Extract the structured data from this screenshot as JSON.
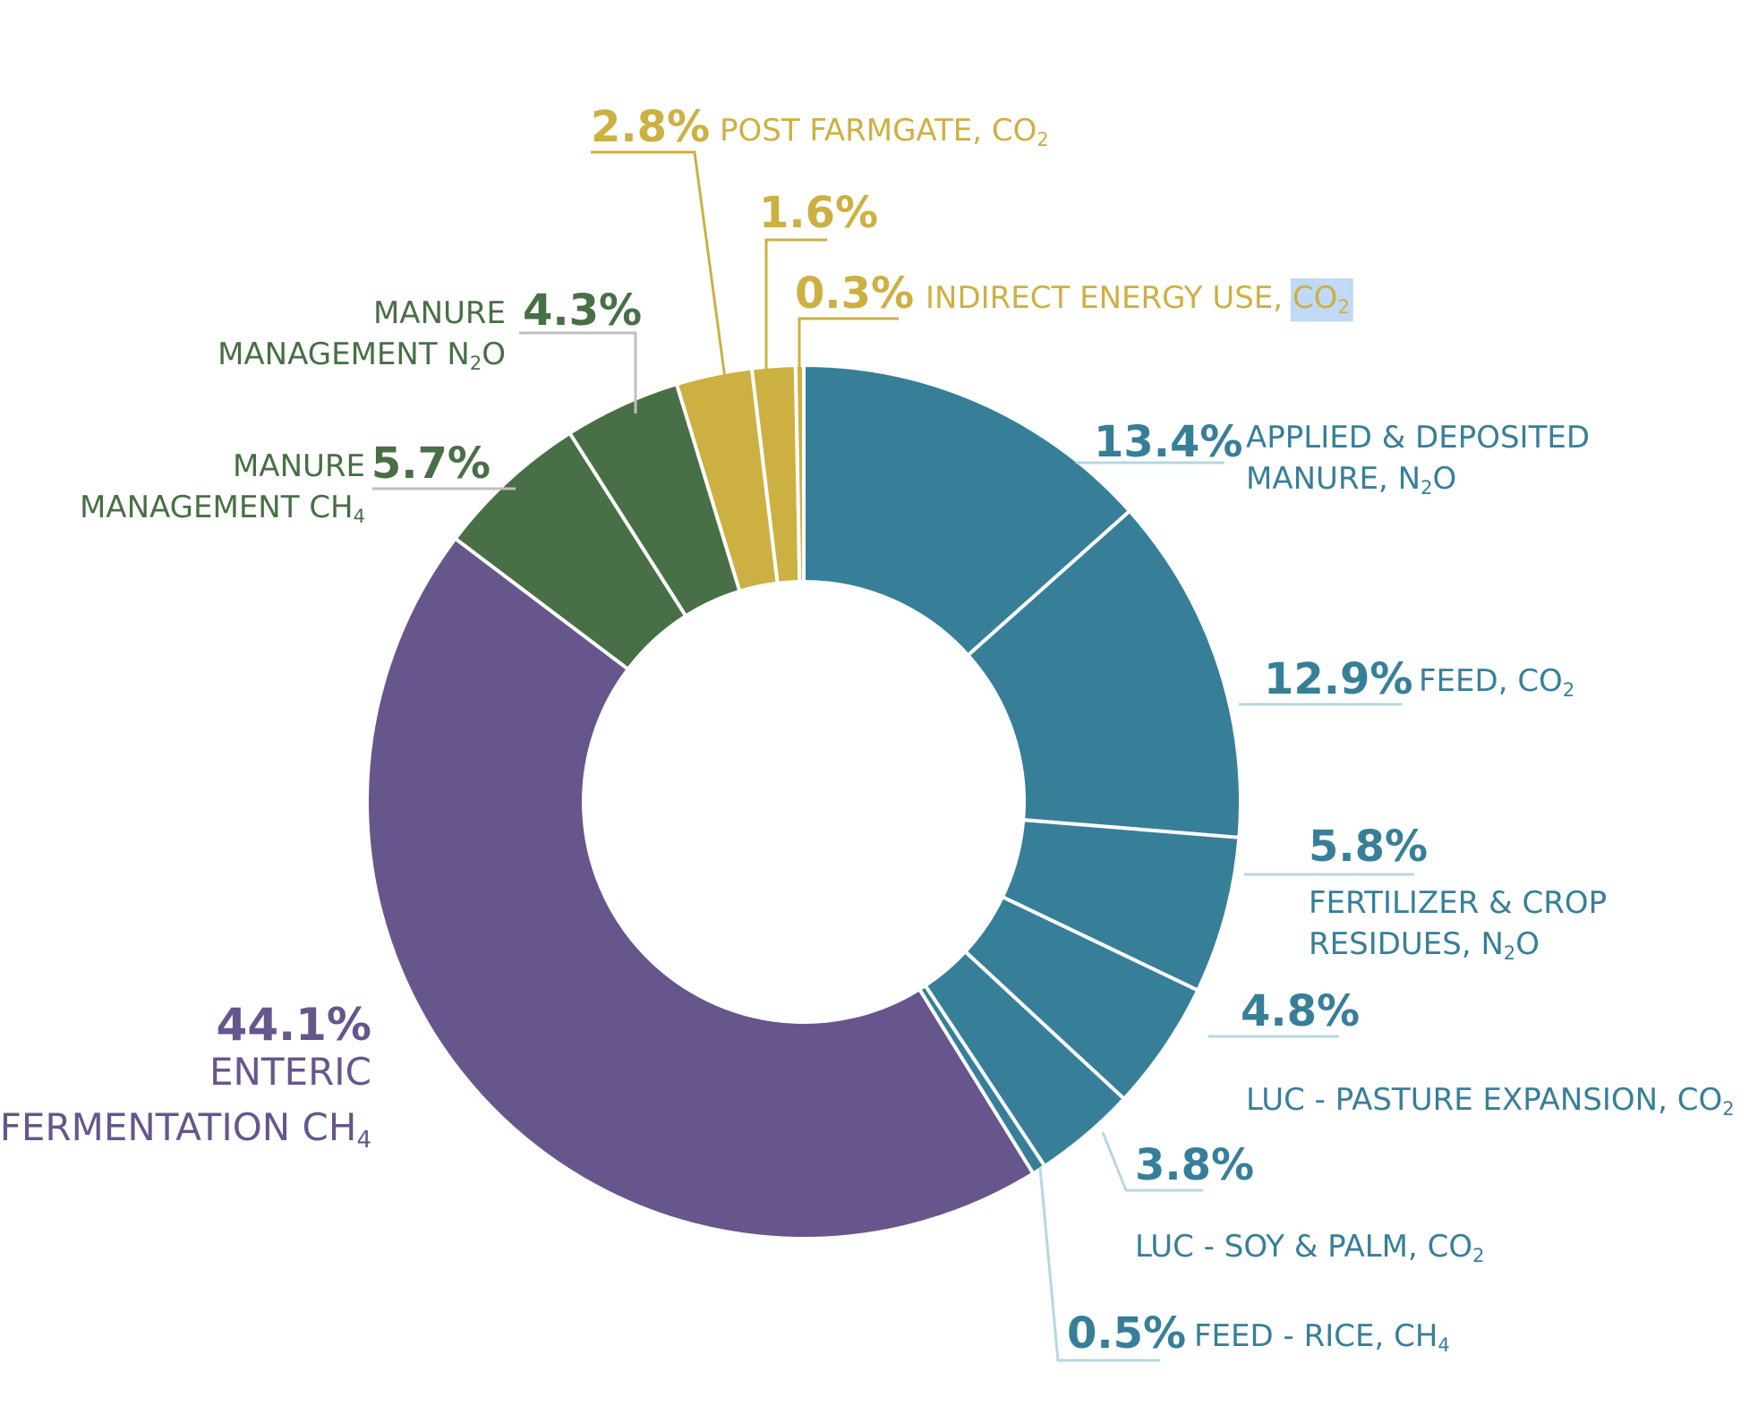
{
  "chart_data": {
    "type": "pie",
    "variant": "donut",
    "title": "",
    "colors": {
      "teal": "#377f99",
      "purple": "#67568c",
      "green": "#486f45",
      "gold": "#cdb042",
      "teal_leader": "#b7d7e1",
      "green_leader": "#bfbfbf",
      "gold_leader": "#cdb042",
      "highlight": "#bfd9f7"
    },
    "slices": [
      {
        "value": 13.4,
        "percent_label": "13.4%",
        "label_lines": [
          [
            {
              "t": "APPLIED & DEPOSITED"
            }
          ],
          [
            {
              "t": "MANURE, N"
            },
            {
              "t": "2",
              "sub": true
            },
            {
              "t": "O"
            }
          ]
        ],
        "color": "#377f99",
        "group": "teal"
      },
      {
        "value": 12.9,
        "percent_label": "12.9%",
        "label_lines": [
          [
            {
              "t": "FEED, CO"
            },
            {
              "t": "2",
              "sub": true
            }
          ]
        ],
        "color": "#377f99",
        "group": "teal"
      },
      {
        "value": 5.8,
        "percent_label": "5.8%",
        "label_lines": [
          [
            {
              "t": "FERTILIZER & CROP"
            }
          ],
          [
            {
              "t": "RESIDUES, N"
            },
            {
              "t": "2",
              "sub": true
            },
            {
              "t": "O"
            }
          ]
        ],
        "color": "#377f99",
        "group": "teal"
      },
      {
        "value": 4.8,
        "percent_label": "4.8%",
        "label_lines": [
          [
            {
              "t": "LUC - PASTURE EXPANSION, CO"
            },
            {
              "t": "2",
              "sub": true
            }
          ]
        ],
        "color": "#377f99",
        "group": "teal"
      },
      {
        "value": 3.8,
        "percent_label": "3.8%",
        "label_lines": [
          [
            {
              "t": "LUC - SOY & PALM, CO"
            },
            {
              "t": "2",
              "sub": true
            }
          ]
        ],
        "color": "#377f99",
        "group": "teal"
      },
      {
        "value": 0.5,
        "percent_label": "0.5%",
        "label_lines": [
          [
            {
              "t": "FEED - RICE, CH"
            },
            {
              "t": "4",
              "sub": true
            }
          ]
        ],
        "color": "#377f99",
        "group": "teal"
      },
      {
        "value": 44.1,
        "percent_label": "44.1%",
        "label_lines": [
          [
            {
              "t": "ENTERIC"
            }
          ],
          [
            {
              "t": "FERMENTATION CH"
            },
            {
              "t": "4",
              "sub": true
            }
          ]
        ],
        "color": "#67568c",
        "group": "purple"
      },
      {
        "value": 5.7,
        "percent_label": "5.7%",
        "label_lines": [
          [
            {
              "t": "MANURE"
            }
          ],
          [
            {
              "t": "MANAGEMENT CH"
            },
            {
              "t": "4",
              "sub": true
            }
          ]
        ],
        "color": "#486f45",
        "group": "green"
      },
      {
        "value": 4.3,
        "percent_label": "4.3%",
        "label_lines": [
          [
            {
              "t": "MANURE"
            }
          ],
          [
            {
              "t": "MANAGEMENT N"
            },
            {
              "t": "2",
              "sub": true
            },
            {
              "t": "O"
            }
          ]
        ],
        "color": "#486f45",
        "group": "green"
      },
      {
        "value": 2.8,
        "percent_label": "2.8%",
        "label_lines": [
          [
            {
              "t": "POST FARMGATE, CO"
            },
            {
              "t": "2",
              "sub": true
            }
          ]
        ],
        "color": "#cdb042",
        "group": "gold"
      },
      {
        "value": 1.6,
        "percent_label": "1.6%",
        "label_lines": [],
        "color": "#cdb042",
        "group": "gold"
      },
      {
        "value": 0.3,
        "percent_label": "0.3%",
        "label_lines": [
          [
            {
              "t": "INDIRECT ENERGY USE, "
            },
            {
              "t": "CO",
              "hl": true
            },
            {
              "t": "2",
              "sub": true,
              "hl": true
            }
          ]
        ],
        "color": "#cdb042",
        "group": "gold"
      }
    ]
  }
}
